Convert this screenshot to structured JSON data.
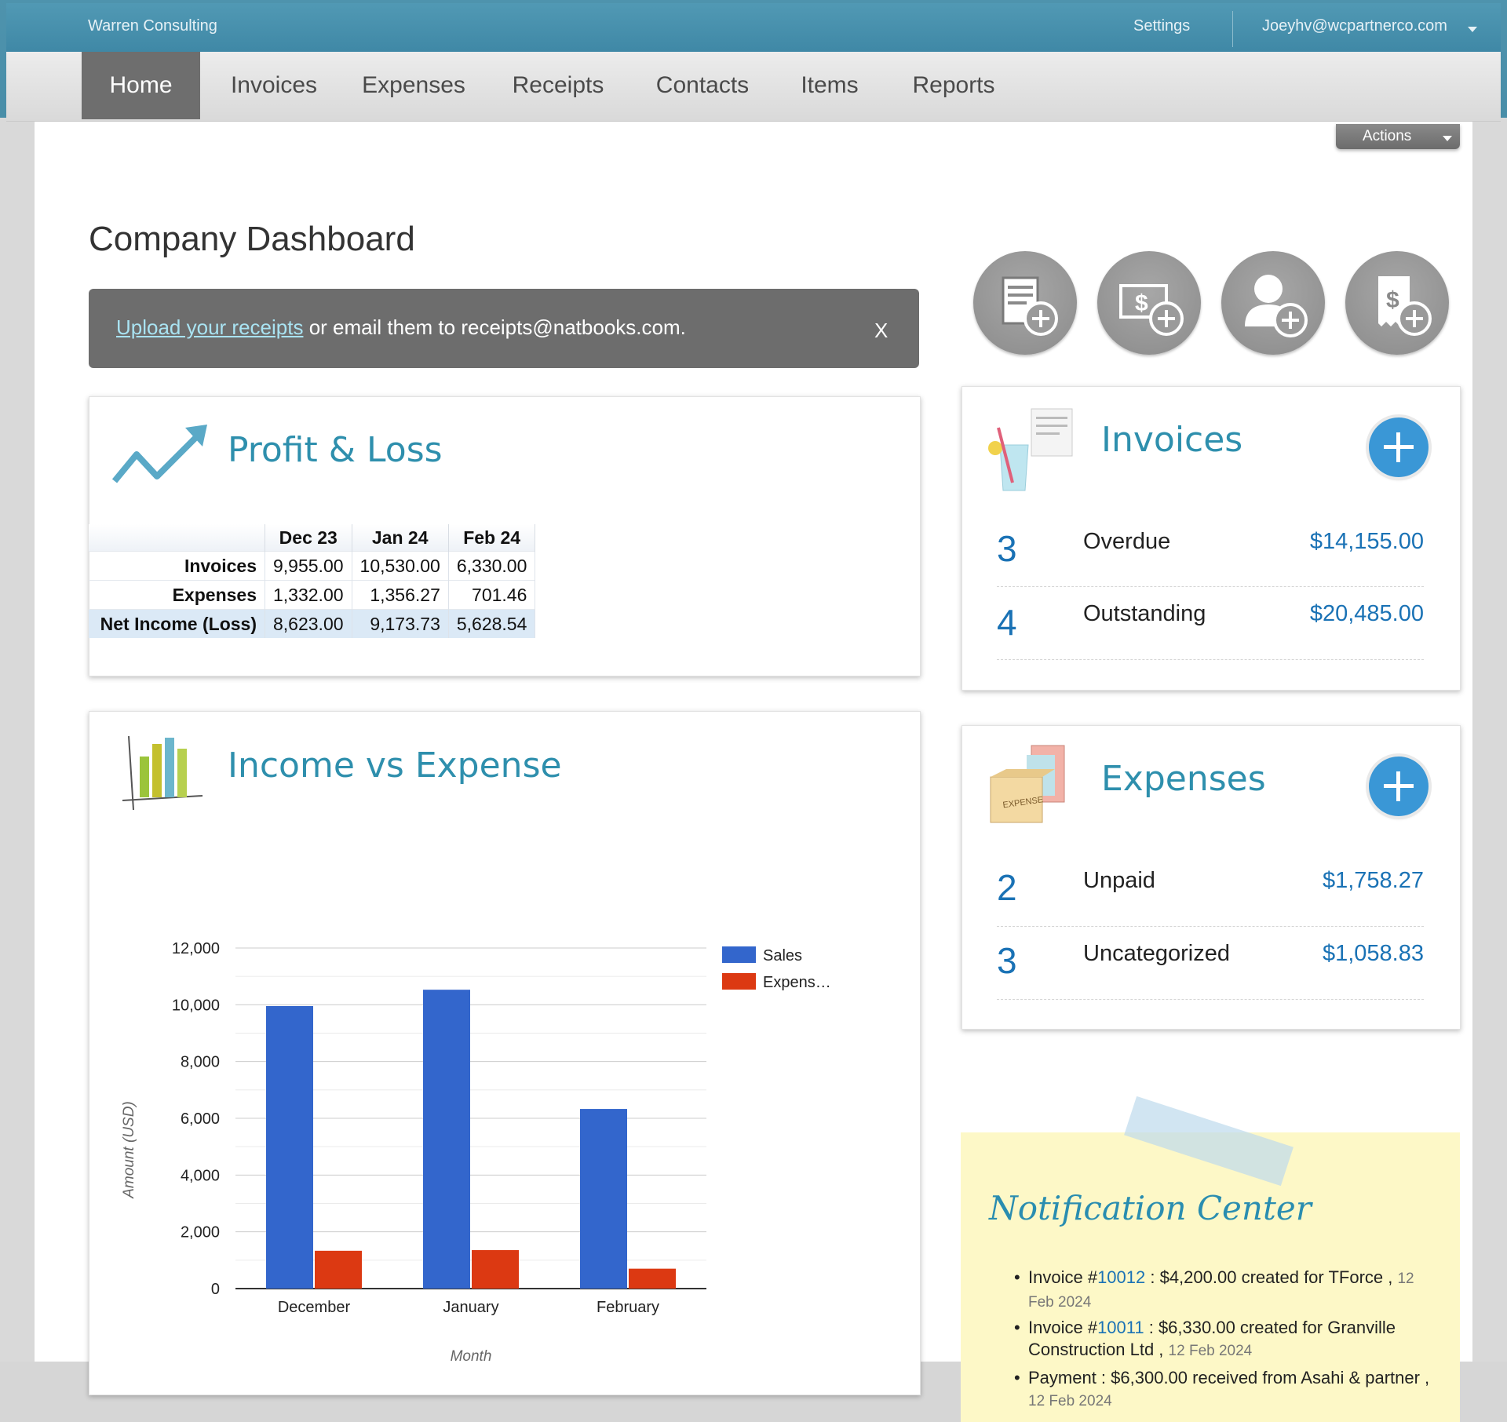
{
  "app": {
    "company": "Warren Consulting",
    "settings_label": "Settings",
    "account_email": "Joeyhv@wcpartnerco.com"
  },
  "nav": {
    "items": [
      "Home",
      "Invoices",
      "Expenses",
      "Receipts",
      "Contacts",
      "Items",
      "Reports"
    ],
    "active": "Home"
  },
  "actions_label": "Actions",
  "page_title": "Company Dashboard",
  "banner": {
    "link_text": "Upload your receipts",
    "rest_text": " or email them to receipts@natbooks.com.",
    "close_label": "X"
  },
  "quick_actions": [
    {
      "icon": "new-invoice-icon"
    },
    {
      "icon": "new-expense-icon"
    },
    {
      "icon": "new-contact-icon"
    },
    {
      "icon": "new-receipt-icon"
    }
  ],
  "profit_loss": {
    "title": "Profit & Loss",
    "columns": [
      "Dec 23",
      "Jan 24",
      "Feb 24"
    ],
    "rows": [
      {
        "label": "Invoices",
        "values": [
          "9,955.00",
          "10,530.00",
          "6,330.00"
        ]
      },
      {
        "label": "Expenses",
        "values": [
          "1,332.00",
          "1,356.27",
          "701.46"
        ]
      },
      {
        "label": "Net Income (Loss)",
        "values": [
          "8,623.00",
          "9,173.73",
          "5,628.54"
        ]
      }
    ]
  },
  "income_expense": {
    "title": "Income vs Expense"
  },
  "chart_data": {
    "type": "bar",
    "categories": [
      "December",
      "January",
      "February"
    ],
    "series": [
      {
        "name": "Sales",
        "values": [
          9955,
          10530,
          6330
        ],
        "color": "#3366cc"
      },
      {
        "name": "Expens…",
        "values": [
          1332,
          1356.27,
          701.46
        ],
        "color": "#dc3912"
      }
    ],
    "ylabel": "Amount (USD)",
    "xlabel": "Month",
    "ylim": [
      0,
      12000
    ],
    "yticks": [
      "0",
      "2,000",
      "4,000",
      "6,000",
      "8,000",
      "10,000",
      "12,000"
    ],
    "legend": "right",
    "grid": true
  },
  "invoices_panel": {
    "title": "Invoices",
    "rows": [
      {
        "count": "3",
        "label": "Overdue",
        "amount": "$14,155.00"
      },
      {
        "count": "4",
        "label": "Outstanding",
        "amount": "$20,485.00"
      }
    ]
  },
  "expenses_panel": {
    "title": "Expenses",
    "rows": [
      {
        "count": "2",
        "label": "Unpaid",
        "amount": "$1,758.27"
      },
      {
        "count": "3",
        "label": "Uncategorized",
        "amount": "$1,058.83"
      }
    ]
  },
  "notifications": {
    "title": "Notification Center",
    "items": [
      {
        "prefix": "Invoice #",
        "link": "10012",
        "text": " : $4,200.00 created for TForce , ",
        "date": "12 Feb 2024"
      },
      {
        "prefix": "Invoice #",
        "link": "10011",
        "text": " : $6,330.00 created for Granville Construction Ltd , ",
        "date": "12 Feb 2024"
      },
      {
        "prefix": "",
        "link": "",
        "text": "Payment : $6,300.00 received from Asahi & partner , ",
        "date": "12 Feb 2024"
      }
    ]
  }
}
